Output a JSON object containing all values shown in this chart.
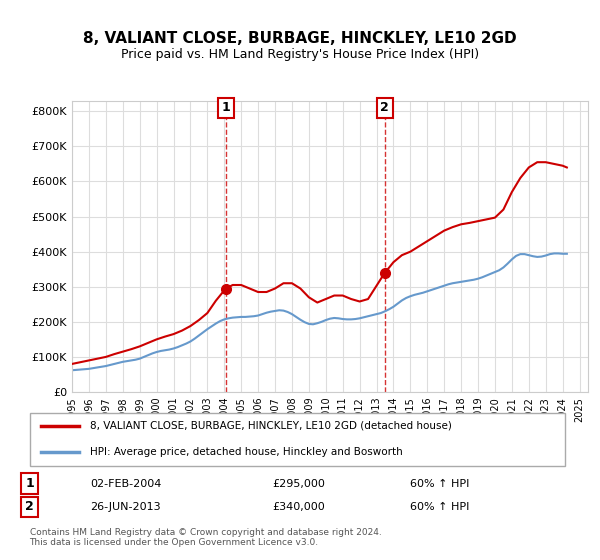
{
  "title": "8, VALIANT CLOSE, BURBAGE, HINCKLEY, LE10 2GD",
  "subtitle": "Price paid vs. HM Land Registry's House Price Index (HPI)",
  "property_label": "8, VALIANT CLOSE, BURBAGE, HINCKLEY, LE10 2GD (detached house)",
  "hpi_label": "HPI: Average price, detached house, Hinckley and Bosworth",
  "sale1_label": "1",
  "sale1_date": "02-FEB-2004",
  "sale1_price": "£295,000",
  "sale1_hpi": "60% ↑ HPI",
  "sale2_label": "2",
  "sale2_date": "26-JUN-2013",
  "sale2_price": "£340,000",
  "sale2_hpi": "60% ↑ HPI",
  "sale1_x": 2004.09,
  "sale1_y": 295000,
  "sale2_x": 2013.49,
  "sale2_y": 340000,
  "vline1_x": 2004.09,
  "vline2_x": 2013.49,
  "property_color": "#cc0000",
  "hpi_color": "#6699cc",
  "vline_color": "#cc0000",
  "background_color": "#ffffff",
  "grid_color": "#dddddd",
  "ylim": [
    0,
    830000
  ],
  "xlim_min": 1995,
  "xlim_max": 2025.5,
  "footer_text": "Contains HM Land Registry data © Crown copyright and database right 2024.\nThis data is licensed under the Open Government Licence v3.0.",
  "hpi_data_x": [
    1995,
    1995.25,
    1995.5,
    1995.75,
    1996,
    1996.25,
    1996.5,
    1996.75,
    1997,
    1997.25,
    1997.5,
    1997.75,
    1998,
    1998.25,
    1998.5,
    1998.75,
    1999,
    1999.25,
    1999.5,
    1999.75,
    2000,
    2000.25,
    2000.5,
    2000.75,
    2001,
    2001.25,
    2001.5,
    2001.75,
    2002,
    2002.25,
    2002.5,
    2002.75,
    2003,
    2003.25,
    2003.5,
    2003.75,
    2004,
    2004.25,
    2004.5,
    2004.75,
    2005,
    2005.25,
    2005.5,
    2005.75,
    2006,
    2006.25,
    2006.5,
    2006.75,
    2007,
    2007.25,
    2007.5,
    2007.75,
    2008,
    2008.25,
    2008.5,
    2008.75,
    2009,
    2009.25,
    2009.5,
    2009.75,
    2010,
    2010.25,
    2010.5,
    2010.75,
    2011,
    2011.25,
    2011.5,
    2011.75,
    2012,
    2012.25,
    2012.5,
    2012.75,
    2013,
    2013.25,
    2013.5,
    2013.75,
    2014,
    2014.25,
    2014.5,
    2014.75,
    2015,
    2015.25,
    2015.5,
    2015.75,
    2016,
    2016.25,
    2016.5,
    2016.75,
    2017,
    2017.25,
    2017.5,
    2017.75,
    2018,
    2018.25,
    2018.5,
    2018.75,
    2019,
    2019.25,
    2019.5,
    2019.75,
    2020,
    2020.25,
    2020.5,
    2020.75,
    2021,
    2021.25,
    2021.5,
    2021.75,
    2022,
    2022.25,
    2022.5,
    2022.75,
    2023,
    2023.25,
    2023.5,
    2023.75,
    2024,
    2024.25
  ],
  "hpi_data_y": [
    62000,
    63000,
    64000,
    65000,
    66000,
    68000,
    70000,
    72000,
    74000,
    77000,
    80000,
    83000,
    86000,
    88000,
    90000,
    92000,
    95000,
    100000,
    105000,
    110000,
    114000,
    117000,
    119000,
    121000,
    124000,
    128000,
    133000,
    138000,
    144000,
    152000,
    161000,
    170000,
    179000,
    187000,
    195000,
    202000,
    207000,
    210000,
    212000,
    213000,
    214000,
    214000,
    215000,
    216000,
    218000,
    222000,
    226000,
    229000,
    231000,
    233000,
    232000,
    228000,
    222000,
    214000,
    206000,
    199000,
    194000,
    193000,
    196000,
    200000,
    205000,
    209000,
    211000,
    210000,
    208000,
    207000,
    207000,
    208000,
    210000,
    213000,
    216000,
    219000,
    222000,
    225000,
    230000,
    236000,
    243000,
    252000,
    261000,
    268000,
    273000,
    277000,
    280000,
    283000,
    287000,
    291000,
    295000,
    299000,
    303000,
    307000,
    310000,
    312000,
    314000,
    316000,
    318000,
    320000,
    323000,
    327000,
    332000,
    337000,
    342000,
    347000,
    355000,
    366000,
    378000,
    388000,
    393000,
    393000,
    390000,
    387000,
    385000,
    386000,
    389000,
    393000,
    395000,
    395000,
    394000,
    394000
  ],
  "property_data_x": [
    1995,
    1995.5,
    1996,
    1996.5,
    1997,
    1997.5,
    1998,
    1998.5,
    1999,
    1999.5,
    2000,
    2000.5,
    2001,
    2001.5,
    2002,
    2002.5,
    2003,
    2003.5,
    2004.09,
    2004.5,
    2005,
    2005.5,
    2006,
    2006.5,
    2007,
    2007.5,
    2008,
    2008.5,
    2009,
    2009.5,
    2010,
    2010.5,
    2011,
    2011.5,
    2012,
    2012.5,
    2013.49,
    2013.75,
    2014,
    2014.5,
    2015,
    2015.5,
    2016,
    2016.5,
    2017,
    2017.5,
    2018,
    2018.5,
    2019,
    2019.5,
    2020,
    2020.5,
    2021,
    2021.5,
    2022,
    2022.5,
    2023,
    2023.5,
    2024,
    2024.25
  ],
  "property_data_y": [
    80000,
    85000,
    90000,
    95000,
    100000,
    108000,
    115000,
    122000,
    130000,
    140000,
    150000,
    158000,
    165000,
    175000,
    188000,
    205000,
    225000,
    260000,
    295000,
    305000,
    305000,
    295000,
    285000,
    285000,
    295000,
    310000,
    310000,
    295000,
    270000,
    255000,
    265000,
    275000,
    275000,
    265000,
    258000,
    265000,
    340000,
    355000,
    370000,
    390000,
    400000,
    415000,
    430000,
    445000,
    460000,
    470000,
    478000,
    482000,
    487000,
    492000,
    497000,
    520000,
    570000,
    610000,
    640000,
    655000,
    655000,
    650000,
    645000,
    640000
  ]
}
